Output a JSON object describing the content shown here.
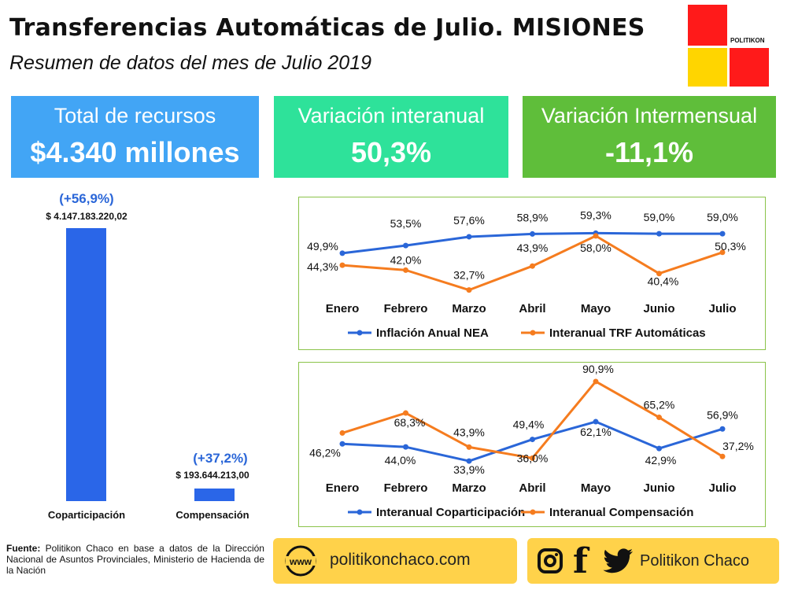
{
  "header": {
    "title": "Transferencias Automáticas de Julio. MISIONES",
    "subtitle": "Resumen de datos del mes de Julio 2019"
  },
  "logo": {
    "text": "POLITIKON",
    "colors": [
      "#ff1a1a",
      "#ffd500"
    ]
  },
  "kpis": [
    {
      "label": "Total de recursos",
      "value": "$4.340 millones",
      "color": "#42a5f5"
    },
    {
      "label": "Variación interanual",
      "value": "50,3%",
      "color": "#2ee29a"
    },
    {
      "label": "Variación Intermensual",
      "value": "-11,1%",
      "color": "#5fbe3a"
    }
  ],
  "bars": {
    "color": "#2a66e8",
    "items": [
      {
        "name": "Coparticipación",
        "amount": "$ 4.147.183.220,02",
        "pct": "(+56,9%)",
        "value": 4147183220.02
      },
      {
        "name": "Compensación",
        "amount": "$ 193.644.213,00",
        "pct": "(+37,2%)",
        "value": 193644213.0
      }
    ]
  },
  "chart_data": [
    {
      "type": "line",
      "categories": [
        "Enero",
        "Febrero",
        "Marzo",
        "Abril",
        "Mayo",
        "Junio",
        "Julio"
      ],
      "series": [
        {
          "name": "Inflación Anual NEA",
          "color": "#2a66d8",
          "values": [
            49.9,
            53.5,
            57.6,
            58.9,
            59.3,
            59.0,
            59.0
          ],
          "labels": [
            "49,9%",
            "53,5%",
            "57,6%",
            "58,9%",
            "59,3%",
            "59,0%",
            "59,0%"
          ]
        },
        {
          "name": "Interanual TRF Automáticas",
          "color": "#f57c1f",
          "values": [
            44.3,
            42.0,
            32.7,
            43.9,
            58.0,
            40.4,
            50.3
          ],
          "labels": [
            "44,3%",
            "42,0%",
            "32,7%",
            "43,9%",
            "58,0%",
            "40,4%",
            "50,3%"
          ]
        }
      ],
      "ylim": [
        30,
        62
      ],
      "legend": "bottom"
    },
    {
      "type": "line",
      "categories": [
        "Enero",
        "Febrero",
        "Marzo",
        "Abril",
        "Mayo",
        "Junio",
        "Julio"
      ],
      "series": [
        {
          "name": "Interanual Coparticipación",
          "color": "#2a66d8",
          "values": [
            46.2,
            44.0,
            33.9,
            49.4,
            62.1,
            42.9,
            56.9
          ],
          "labels": [
            "46,2%",
            "44,0%",
            "33,9%",
            "49,4%",
            "62,1%",
            "42,9%",
            "56,9%"
          ]
        },
        {
          "name": "Interanual Compensación",
          "color": "#f57c1f",
          "values": [
            54.0,
            68.3,
            43.9,
            36.0,
            90.9,
            65.2,
            37.2
          ],
          "labels": [
            "",
            "68,3%",
            "43,9%",
            "36,0%",
            "90,9%",
            "65,2%",
            "37,2%"
          ]
        }
      ],
      "ylim": [
        30,
        92
      ],
      "legend": "bottom"
    }
  ],
  "footer": {
    "source_label": "Fuente:",
    "source_text": "Politikon Chaco en base a datos de la Dirección Nacional de Asuntos Provinciales, Ministerio de Hacienda de la Nación",
    "website": "politikonchaco.com",
    "www": "www",
    "social": "Politikon Chaco",
    "facebook": "f"
  }
}
